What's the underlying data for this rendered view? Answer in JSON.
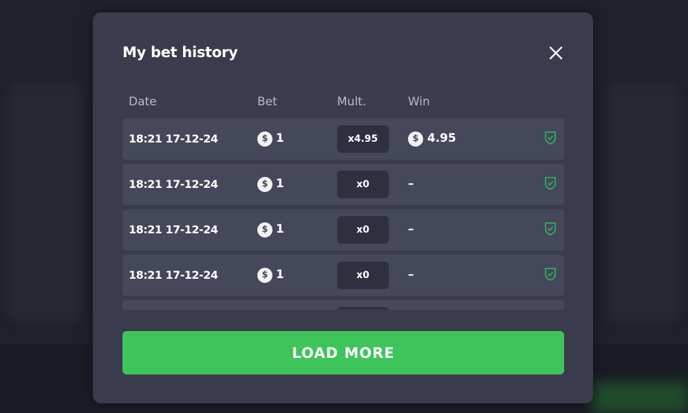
{
  "modal": {
    "title": "My bet history",
    "close_icon": "close-icon"
  },
  "columns": {
    "date": "Date",
    "bet": "Bet",
    "mult": "Mult.",
    "win": "Win"
  },
  "rows": [
    {
      "date": "18:21 17-12-24",
      "bet": "1",
      "mult": "x4.95",
      "win": "4.95",
      "verified": true
    },
    {
      "date": "18:21 17-12-24",
      "bet": "1",
      "mult": "x0",
      "win": "–",
      "verified": true
    },
    {
      "date": "18:21 17-12-24",
      "bet": "1",
      "mult": "x0",
      "win": "–",
      "verified": true
    },
    {
      "date": "18:21 17-12-24",
      "bet": "1",
      "mult": "x0",
      "win": "–",
      "verified": true
    }
  ],
  "currency_symbol": "$",
  "load_more": "LOAD MORE",
  "colors": {
    "accent": "#3dc55b",
    "modal_bg": "#3a3c4e",
    "row_bg": "#45485b",
    "shield": "#2fae5a"
  }
}
